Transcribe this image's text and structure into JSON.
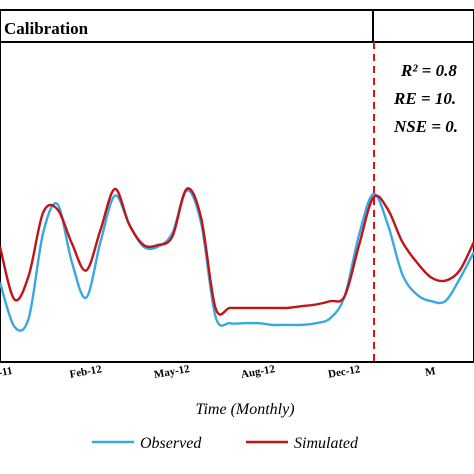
{
  "chart_data": {
    "type": "line",
    "title": "",
    "xlabel": "Time (Monthly)",
    "ylabel": "",
    "grid": false,
    "legend_position": "bottom",
    "x_tick_labels": [
      "-11",
      "Feb-12",
      "May-12",
      "Aug-12",
      "Dec-12",
      "M"
    ],
    "panel_labels": {
      "calibration": "Calibration"
    },
    "metrics": [
      {
        "label": "R² = 0.8"
      },
      {
        "label": "RE = 10."
      },
      {
        "label": "NSE = 0."
      }
    ],
    "x": [
      0,
      0.5,
      1,
      1.5,
      2,
      2.5,
      3,
      3.5,
      4,
      4.5,
      5,
      5.5,
      6,
      6.5,
      7,
      7.5,
      8,
      8.5,
      9,
      9.5,
      10,
      10.5,
      11,
      11.5,
      12,
      12.5,
      13,
      13.5,
      14,
      14.5,
      15,
      15.5,
      16,
      16.5
    ],
    "x_tick_positions": [
      0,
      3,
      6,
      9,
      12,
      15
    ],
    "calibration_end_x": 12,
    "series": [
      {
        "name": "Observed",
        "color": "#3aa8e0",
        "values": [
          0.28,
          0.02,
          0.07,
          0.57,
          0.74,
          0.4,
          0.19,
          0.52,
          0.79,
          0.62,
          0.49,
          0.49,
          0.57,
          0.82,
          0.63,
          0.08,
          0.04,
          0.04,
          0.04,
          0.03,
          0.03,
          0.03,
          0.04,
          0.07,
          0.2,
          0.56,
          0.8,
          0.62,
          0.33,
          0.21,
          0.17,
          0.17,
          0.3,
          0.46
        ]
      },
      {
        "name": "Simulated",
        "color": "#c0141a",
        "values": [
          0.49,
          0.18,
          0.32,
          0.69,
          0.71,
          0.51,
          0.35,
          0.59,
          0.83,
          0.62,
          0.5,
          0.5,
          0.55,
          0.83,
          0.66,
          0.13,
          0.13,
          0.13,
          0.13,
          0.13,
          0.13,
          0.14,
          0.15,
          0.17,
          0.2,
          0.5,
          0.78,
          0.71,
          0.52,
          0.4,
          0.31,
          0.29,
          0.35,
          0.52
        ]
      }
    ]
  }
}
